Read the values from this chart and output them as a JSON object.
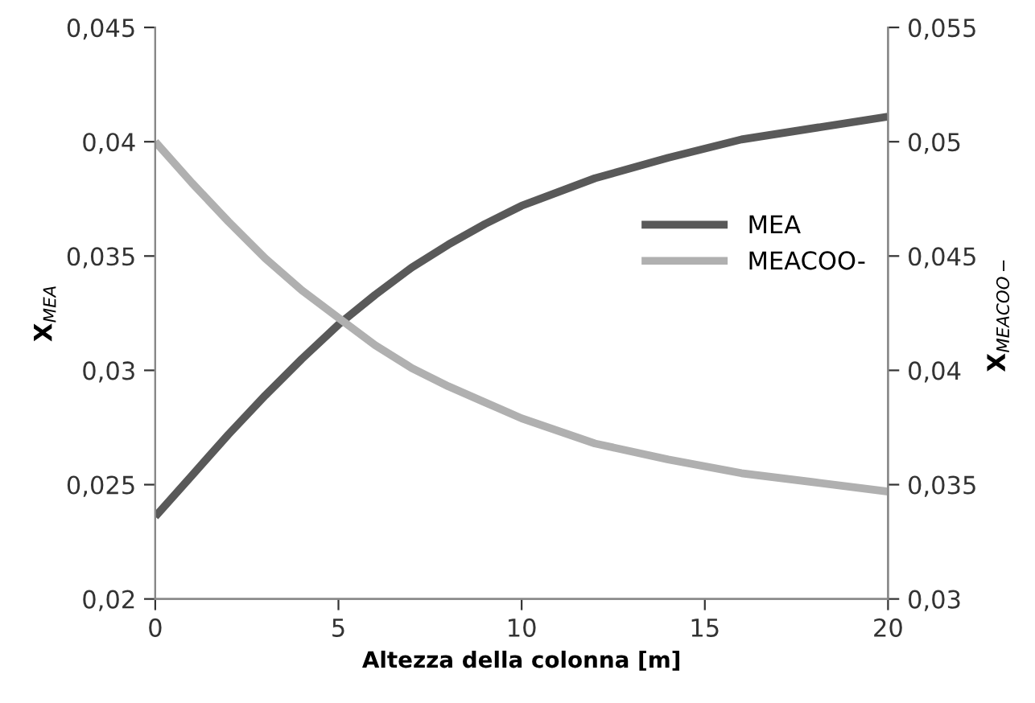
{
  "chart_data": {
    "type": "line",
    "xlabel": "Altezza della colonna [m]",
    "ylabel": "X$_{MEA}$",
    "y2label": "X$_{MEACOO−}$",
    "x": [
      0,
      1,
      2,
      3,
      4,
      5,
      6,
      7,
      8,
      9,
      10,
      12,
      14,
      16,
      18,
      20
    ],
    "series": [
      {
        "name": "MEA",
        "color": "#595959",
        "values": [
          0.0236,
          0.0254,
          0.0272,
          0.0289,
          0.0305,
          0.032,
          0.0333,
          0.0345,
          0.0355,
          0.0364,
          0.0372,
          0.0384,
          0.0393,
          0.0401,
          0.0406,
          0.0411
        ]
      },
      {
        "name": "MEACOO-",
        "color": "#b0b0b0",
        "axis": "y2",
        "values": [
          0.05,
          0.0482,
          0.0465,
          0.0449,
          0.0435,
          0.0423,
          0.0411,
          0.0401,
          0.0393,
          0.0386,
          0.0379,
          0.0368,
          0.0361,
          0.0355,
          0.0351,
          0.0347
        ]
      }
    ],
    "xlim": [
      0,
      20
    ],
    "xticks": [
      0,
      5,
      10,
      15,
      20
    ],
    "ylim": [
      0.02,
      0.045
    ],
    "yticks": [
      {
        "value": 0.02,
        "label": "0,02"
      },
      {
        "value": 0.025,
        "label": "0,025"
      },
      {
        "value": 0.03,
        "label": "0,03"
      },
      {
        "value": 0.035,
        "label": "0,035"
      },
      {
        "value": 0.04,
        "label": "0,04"
      },
      {
        "value": 0.045,
        "label": "0,045"
      }
    ],
    "y2lim": [
      0.03,
      0.055
    ],
    "y2ticks": [
      {
        "value": 0.03,
        "label": "0,03"
      },
      {
        "value": 0.035,
        "label": "0,035"
      },
      {
        "value": 0.04,
        "label": "0,04"
      },
      {
        "value": 0.045,
        "label": "0,045"
      },
      {
        "value": 0.05,
        "label": "0,05"
      },
      {
        "value": 0.055,
        "label": "0,055"
      }
    ],
    "legend": "right",
    "grid": false,
    "marker": "none",
    "line_style": "solid"
  }
}
